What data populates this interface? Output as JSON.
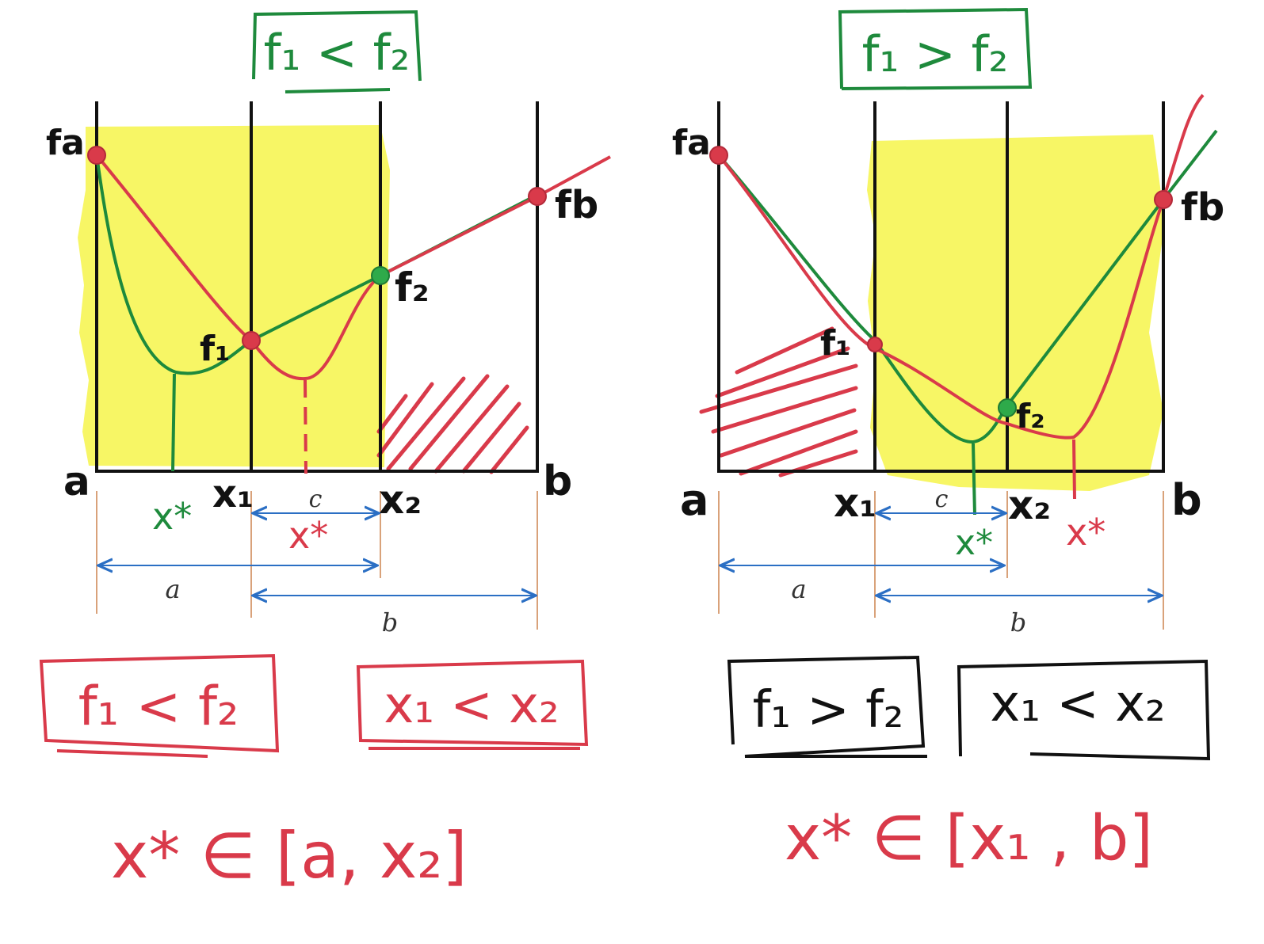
{
  "colors": {
    "green": "#1e8a3c",
    "red": "#d93a4a",
    "black": "#111111",
    "yellow": "#f6f44a",
    "blue": "#2b6fc4",
    "tan": "#d9a27a"
  },
  "left_panel": {
    "condition_title": "f₁ < f₂",
    "label_fa": "fa",
    "label_f1": "f₁",
    "label_f2": "f₂",
    "label_fb": "fb",
    "label_a": "a",
    "label_x1": "x₁",
    "label_x2": "x₂",
    "label_b": "b",
    "green_xstar": "x*",
    "red_xstar": "x*",
    "dim_c": "c",
    "dim_a": "a",
    "dim_b": "b",
    "box_condition": "f₁ < f₂",
    "box_order": "x₁ < x₂",
    "result": "x* ∈ [a, x₂]"
  },
  "right_panel": {
    "condition_title": "f₁ > f₂",
    "label_fa": "fa",
    "label_f1": "f₁",
    "label_f2": "f₂",
    "label_fb": "fb",
    "label_a": "a",
    "label_x1": "x₁",
    "label_x2": "x₂",
    "label_b": "b",
    "green_xstar": "x*",
    "red_xstar": "x*",
    "dim_c": "c",
    "dim_a": "a",
    "dim_b": "b",
    "box_condition": "f₁ > f₂",
    "box_order": "x₁ < x₂",
    "result": "x* ∈ [x₁ , b]"
  }
}
